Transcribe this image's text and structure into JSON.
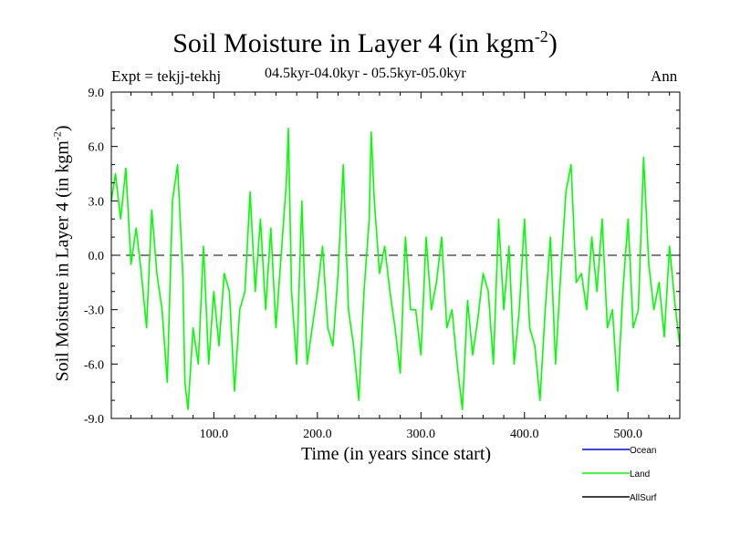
{
  "title_main": "Soil Moisture in Layer 4 (in kgm",
  "title_sup": "-2",
  "title_close": ")",
  "expt": "Expt = tekjj-tekhj",
  "subtitle": "04.5kyr-04.0kyr - 05.5kyr-05.0kyr",
  "season": "Ann",
  "chart_data": {
    "type": "line",
    "title": "Soil Moisture in Layer 4 (in kgm-2)",
    "xlabel": "Time (in years since start)",
    "ylabel_main": "Soil Moisture in Layer 4 (in kgm",
    "ylabel_sup": "-2",
    "ylabel_close": ")",
    "xlim": [
      1,
      550
    ],
    "ylim": [
      -9,
      9
    ],
    "x_ticks": [
      100,
      200,
      300,
      400,
      500
    ],
    "x_tick_labels": [
      "100.0",
      "200.0",
      "300.0",
      "400.0",
      "500.0"
    ],
    "y_ticks": [
      -9,
      -6,
      -3,
      0,
      3,
      6,
      9
    ],
    "y_tick_labels": [
      "-9.0",
      "-6.0",
      "-3.0",
      "0.0",
      "3.0",
      "6.0",
      "9.0"
    ],
    "reference_line": 0,
    "series": [
      {
        "name": "Ocean",
        "color": "#0000ff",
        "values": []
      },
      {
        "name": "Land",
        "color": "#00ff00",
        "x": [
          1,
          5,
          10,
          15,
          20,
          25,
          30,
          35,
          40,
          45,
          50,
          55,
          60,
          65,
          70,
          72,
          75,
          80,
          85,
          90,
          95,
          100,
          105,
          110,
          115,
          120,
          125,
          130,
          135,
          140,
          145,
          150,
          155,
          160,
          165,
          170,
          172,
          175,
          180,
          185,
          190,
          195,
          200,
          205,
          210,
          215,
          220,
          225,
          230,
          235,
          240,
          245,
          250,
          252,
          255,
          260,
          265,
          270,
          275,
          280,
          285,
          290,
          295,
          300,
          305,
          310,
          315,
          320,
          325,
          330,
          335,
          340,
          345,
          350,
          355,
          360,
          365,
          370,
          375,
          380,
          385,
          390,
          395,
          400,
          405,
          410,
          415,
          420,
          425,
          430,
          435,
          440,
          445,
          450,
          455,
          460,
          465,
          470,
          475,
          480,
          485,
          490,
          495,
          500,
          505,
          510,
          515,
          520,
          525,
          530,
          535,
          540,
          545,
          550
        ],
        "values": [
          3.0,
          4.5,
          2.0,
          4.8,
          -0.5,
          1.5,
          -1.0,
          -4.0,
          2.5,
          -1.0,
          -3.0,
          -7.0,
          3.0,
          5.0,
          -1.0,
          -7.0,
          -8.5,
          -4.0,
          -6.0,
          0.5,
          -6.0,
          -2.0,
          -5.0,
          -1.0,
          -2.0,
          -7.5,
          -3.0,
          -2.0,
          3.5,
          -2.0,
          2.0,
          -3.0,
          1.5,
          -4.0,
          0.0,
          4.0,
          7.0,
          -2.0,
          -6.0,
          3.0,
          -6.0,
          -4.0,
          -2.0,
          0.5,
          -4.0,
          -5.0,
          -1.0,
          5.0,
          -3.0,
          -5.0,
          -8.0,
          -2.0,
          2.0,
          6.8,
          3.0,
          -1.0,
          0.5,
          -2.0,
          -4.0,
          -6.5,
          1.0,
          -3.0,
          -3.0,
          -5.5,
          1.0,
          -3.0,
          -1.5,
          1.0,
          -4.0,
          -3.0,
          -6.0,
          -8.5,
          -2.5,
          -5.5,
          -3.5,
          -1.0,
          -2.0,
          -6.0,
          2.0,
          -3.0,
          0.5,
          -6.0,
          -3.0,
          2.0,
          -4.0,
          -5.0,
          -8.0,
          -3.0,
          1.0,
          -6.0,
          -1.0,
          3.5,
          5.0,
          -1.5,
          -1.0,
          -3.0,
          1.0,
          -2.0,
          2.0,
          -4.0,
          -3.0,
          -7.5,
          -2.0,
          2.0,
          -4.0,
          -3.0,
          5.4,
          -0.5,
          -3.0,
          -1.5,
          -4.5,
          0.5,
          -2.5,
          -5.0
        ]
      },
      {
        "name": "AllSurf",
        "color": "#000000",
        "values": []
      }
    ],
    "legend_position": "bottom-right"
  }
}
